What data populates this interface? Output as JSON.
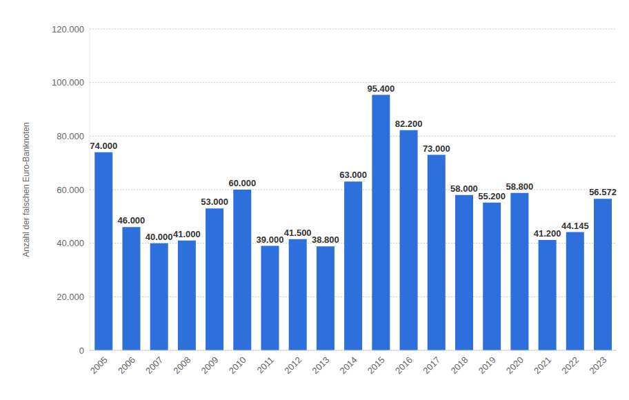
{
  "chart_data": {
    "type": "bar",
    "y_label": "Anzahl der falschen Euro-Banknoten",
    "categories": [
      "2005",
      "2006",
      "2007",
      "2008",
      "2009",
      "2010",
      "2011",
      "2012",
      "2013",
      "2014",
      "2015",
      "2016",
      "2017",
      "2018",
      "2019",
      "2020",
      "2021",
      "2022",
      "2023"
    ],
    "values": [
      74000,
      46000,
      40000,
      41000,
      53000,
      60000,
      39000,
      41500,
      38800,
      63000,
      95400,
      82200,
      73000,
      58000,
      55200,
      58800,
      41200,
      44145,
      56572
    ],
    "value_labels": [
      "74.000",
      "46.000",
      "40.000",
      "41.000",
      "53.000",
      "60.000",
      "39.000",
      "41.500",
      "38.800",
      "63.000",
      "95.400",
      "82.200",
      "73.000",
      "58.000",
      "55.200",
      "58.800",
      "41.200",
      "44.145",
      "56.572"
    ],
    "color": "#2d6fdb",
    "ylim": [
      0,
      120000
    ],
    "yticks": [
      0,
      {
        "value": 20000,
        "label": "20.000"
      },
      {
        "value": 40000,
        "label": "40.000"
      },
      {
        "value": 60000,
        "label": "60.000"
      },
      {
        "value": 80000,
        "label": "80.000"
      },
      {
        "value": 100000,
        "label": "100.000"
      },
      {
        "value": 120000,
        "label": "120.000"
      }
    ],
    "grid": true,
    "data_labels": true
  }
}
